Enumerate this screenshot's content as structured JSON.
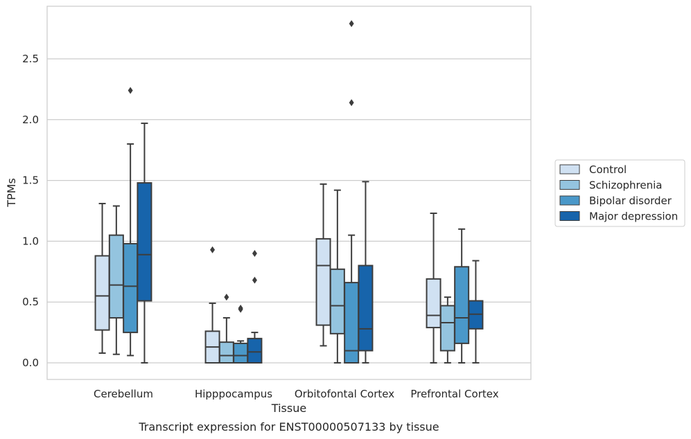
{
  "chart_data": {
    "type": "box",
    "xlabel": "Tissue",
    "ylabel": "TPMs",
    "caption": "Transcript expression for ENST00000507133 by tissue",
    "ylim": [
      -0.13,
      2.95
    ],
    "yticks": [
      0.0,
      0.5,
      1.0,
      1.5,
      2.0,
      2.5
    ],
    "ytick_labels": [
      "0.0",
      "0.5",
      "1.0",
      "1.5",
      "2.0",
      "2.5"
    ],
    "grid": "horizontal",
    "legend_position": "right",
    "categories": [
      "Cerebellum",
      "Hipppocampus",
      "Orbitofontal Cortex",
      "Prefrontal Cortex"
    ],
    "series": [
      {
        "name": "Control",
        "color": "#d0e1f2",
        "boxes": [
          {
            "whisker_low": 0.08,
            "q1": 0.27,
            "median": 0.55,
            "q3": 0.88,
            "whisker_high": 1.31,
            "outliers": []
          },
          {
            "whisker_low": 0.0,
            "q1": 0.0,
            "median": 0.13,
            "q3": 0.26,
            "whisker_high": 0.49,
            "outliers": [
              0.93
            ]
          },
          {
            "whisker_low": 0.14,
            "q1": 0.31,
            "median": 0.8,
            "q3": 1.02,
            "whisker_high": 1.47,
            "outliers": []
          },
          {
            "whisker_low": 0.0,
            "q1": 0.29,
            "median": 0.39,
            "q3": 0.69,
            "whisker_high": 1.23,
            "outliers": []
          }
        ]
      },
      {
        "name": "Schizophrenia",
        "color": "#94c4df",
        "boxes": [
          {
            "whisker_low": 0.07,
            "q1": 0.37,
            "median": 0.64,
            "q3": 1.05,
            "whisker_high": 1.29,
            "outliers": []
          },
          {
            "whisker_low": 0.0,
            "q1": 0.0,
            "median": 0.06,
            "q3": 0.17,
            "whisker_high": 0.37,
            "outliers": [
              0.54
            ]
          },
          {
            "whisker_low": 0.0,
            "q1": 0.24,
            "median": 0.47,
            "q3": 0.77,
            "whisker_high": 1.42,
            "outliers": []
          },
          {
            "whisker_low": 0.0,
            "q1": 0.1,
            "median": 0.33,
            "q3": 0.47,
            "whisker_high": 0.54,
            "outliers": []
          }
        ]
      },
      {
        "name": "Bipolar disorder",
        "color": "#4a98c9",
        "boxes": [
          {
            "whisker_low": 0.06,
            "q1": 0.25,
            "median": 0.63,
            "q3": 0.98,
            "whisker_high": 1.8,
            "outliers": [
              2.24
            ]
          },
          {
            "whisker_low": 0.0,
            "q1": 0.0,
            "median": 0.06,
            "q3": 0.16,
            "whisker_high": 0.18,
            "outliers": [
              0.44,
              0.45
            ]
          },
          {
            "whisker_low": 0.0,
            "q1": 0.0,
            "median": 0.1,
            "q3": 0.66,
            "whisker_high": 1.05,
            "outliers": [
              2.14,
              2.79
            ]
          },
          {
            "whisker_low": 0.0,
            "q1": 0.16,
            "median": 0.37,
            "q3": 0.79,
            "whisker_high": 1.1,
            "outliers": []
          }
        ]
      },
      {
        "name": "Major depression",
        "color": "#1764ab",
        "boxes": [
          {
            "whisker_low": 0.0,
            "q1": 0.51,
            "median": 0.89,
            "q3": 1.48,
            "whisker_high": 1.97,
            "outliers": []
          },
          {
            "whisker_low": 0.0,
            "q1": 0.0,
            "median": 0.09,
            "q3": 0.2,
            "whisker_high": 0.25,
            "outliers": [
              0.68,
              0.9
            ]
          },
          {
            "whisker_low": 0.0,
            "q1": 0.1,
            "median": 0.28,
            "q3": 0.8,
            "whisker_high": 1.49,
            "outliers": []
          },
          {
            "whisker_low": 0.0,
            "q1": 0.28,
            "median": 0.4,
            "q3": 0.51,
            "whisker_high": 0.84,
            "outliers": []
          }
        ]
      }
    ]
  }
}
